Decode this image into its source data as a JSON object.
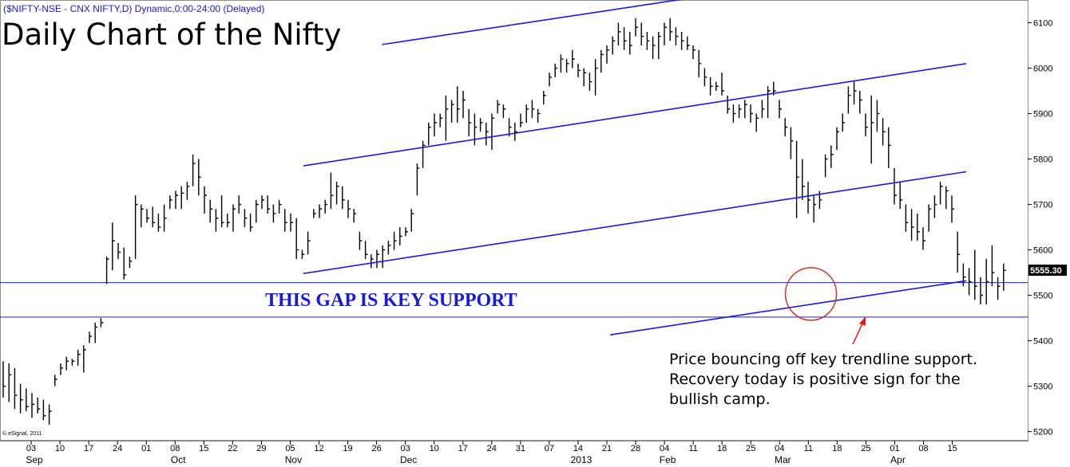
{
  "chart_data": {
    "type": "ohlc",
    "symbol_line": "($NIFTY-NSE - CNX NIFTY,D) Dynamic,0:00-24:00 (Delayed)",
    "title": "Daily Chart of the Nifty",
    "copyright": "© eSignal, 2011",
    "ylim": [
      5180,
      6150
    ],
    "y_ticks": [
      5200,
      5300,
      5400,
      5500,
      5600,
      5700,
      5800,
      5900,
      6000,
      6100
    ],
    "last_price_label": "5555.30",
    "x_day_labels": [
      "03",
      "10",
      "17",
      "24",
      "01",
      "08",
      "15",
      "22",
      "29",
      "05",
      "12",
      "19",
      "26",
      "03",
      "10",
      "17",
      "24",
      "31",
      "07",
      "14",
      "21",
      "28",
      "04",
      "11",
      "18",
      "25",
      "04",
      "11",
      "18",
      "25",
      "01",
      "08",
      "15"
    ],
    "x_month_labels": [
      {
        "text": "Sep",
        "at": "03"
      },
      {
        "text": "Oct",
        "at": "08"
      },
      {
        "text": "Nov",
        "at": "05"
      },
      {
        "text": "Dec",
        "at": "03"
      },
      {
        "text": "2013",
        "at": "14"
      },
      {
        "text": "Feb",
        "at": "04"
      },
      {
        "text": "Mar",
        "at": "04"
      },
      {
        "text": "Apr",
        "at": "01"
      }
    ],
    "annotations": {
      "gap_label": "THIS GAP IS KEY SUPPORT",
      "note": [
        "Price bouncing off key trendline support.",
        "Recovery today is positive sign for the",
        "bullish camp."
      ]
    },
    "gap_levels": [
      5528,
      5452
    ],
    "bar_spacing_days": 1,
    "bars": [
      [
        5355,
        5275,
        5300
      ],
      [
        5350,
        5265,
        5325
      ],
      [
        5340,
        5250,
        5280
      ],
      [
        5305,
        5240,
        5270
      ],
      [
        5295,
        5245,
        5255
      ],
      [
        5285,
        5230,
        5260
      ],
      [
        5275,
        5240,
        5250
      ],
      [
        5270,
        5225,
        5235
      ],
      [
        5260,
        5215,
        5245
      ],
      [
        5325,
        5300,
        5315
      ],
      [
        5350,
        5325,
        5340
      ],
      [
        5365,
        5335,
        5355
      ],
      [
        5360,
        5345,
        5355
      ],
      [
        5380,
        5345,
        5370
      ],
      [
        5390,
        5330,
        5380
      ],
      [
        5420,
        5395,
        5410
      ],
      [
        5440,
        5395,
        5430
      ],
      [
        5450,
        5430,
        5440
      ],
      [
        5585,
        5525,
        5580
      ],
      [
        5660,
        5555,
        5620
      ],
      [
        5615,
        5580,
        5595
      ],
      [
        5605,
        5535,
        5545
      ],
      [
        5585,
        5560,
        5575
      ],
      [
        5720,
        5580,
        5700
      ],
      [
        5700,
        5650,
        5690
      ],
      [
        5690,
        5660,
        5670
      ],
      [
        5695,
        5650,
        5660
      ],
      [
        5680,
        5640,
        5650
      ],
      [
        5700,
        5640,
        5670
      ],
      [
        5720,
        5690,
        5710
      ],
      [
        5730,
        5690,
        5720
      ],
      [
        5740,
        5690,
        5725
      ],
      [
        5750,
        5710,
        5740
      ],
      [
        5810,
        5740,
        5790
      ],
      [
        5800,
        5720,
        5760
      ],
      [
        5740,
        5680,
        5720
      ],
      [
        5710,
        5660,
        5690
      ],
      [
        5690,
        5640,
        5670
      ],
      [
        5720,
        5650,
        5660
      ],
      [
        5680,
        5650,
        5660
      ],
      [
        5700,
        5640,
        5690
      ],
      [
        5720,
        5680,
        5700
      ],
      [
        5690,
        5650,
        5670
      ],
      [
        5680,
        5640,
        5650
      ],
      [
        5710,
        5660,
        5700
      ],
      [
        5720,
        5690,
        5710
      ],
      [
        5720,
        5680,
        5690
      ],
      [
        5700,
        5660,
        5680
      ],
      [
        5710,
        5680,
        5700
      ],
      [
        5690,
        5640,
        5660
      ],
      [
        5680,
        5640,
        5660
      ],
      [
        5670,
        5580,
        5600
      ],
      [
        5600,
        5580,
        5590
      ],
      [
        5640,
        5590,
        5620
      ],
      [
        5690,
        5670,
        5680
      ],
      [
        5700,
        5670,
        5690
      ],
      [
        5710,
        5680,
        5700
      ],
      [
        5770,
        5690,
        5720
      ],
      [
        5750,
        5700,
        5740
      ],
      [
        5740,
        5690,
        5710
      ],
      [
        5710,
        5670,
        5690
      ],
      [
        5690,
        5660,
        5680
      ],
      [
        5640,
        5600,
        5620
      ],
      [
        5620,
        5580,
        5590
      ],
      [
        5590,
        5560,
        5580
      ],
      [
        5600,
        5560,
        5590
      ],
      [
        5610,
        5560,
        5600
      ],
      [
        5620,
        5590,
        5610
      ],
      [
        5640,
        5600,
        5620
      ],
      [
        5650,
        5610,
        5630
      ],
      [
        5650,
        5630,
        5640
      ],
      [
        5690,
        5640,
        5680
      ],
      [
        5790,
        5720,
        5780
      ],
      [
        5840,
        5780,
        5830
      ],
      [
        5880,
        5830,
        5870
      ],
      [
        5900,
        5850,
        5880
      ],
      [
        5900,
        5870,
        5890
      ],
      [
        5940,
        5840,
        5910
      ],
      [
        5930,
        5880,
        5920
      ],
      [
        5960,
        5880,
        5910
      ],
      [
        5950,
        5890,
        5930
      ],
      [
        5910,
        5850,
        5880
      ],
      [
        5900,
        5830,
        5870
      ],
      [
        5890,
        5860,
        5880
      ],
      [
        5880,
        5830,
        5860
      ],
      [
        5900,
        5820,
        5890
      ],
      [
        5930,
        5900,
        5920
      ],
      [
        5920,
        5890,
        5910
      ],
      [
        5890,
        5850,
        5870
      ],
      [
        5880,
        5840,
        5860
      ],
      [
        5900,
        5870,
        5880
      ],
      [
        5920,
        5880,
        5910
      ],
      [
        5930,
        5890,
        5910
      ],
      [
        5910,
        5880,
        5900
      ],
      [
        5950,
        5920,
        5940
      ],
      [
        5990,
        5960,
        5980
      ],
      [
        6010,
        5980,
        6000
      ],
      [
        6030,
        5990,
        6020
      ],
      [
        6020,
        5990,
        6010
      ],
      [
        6040,
        6000,
        6020
      ],
      [
        6010,
        5980,
        5995
      ],
      [
        6000,
        5960,
        5990
      ],
      [
        5990,
        5950,
        5970
      ],
      [
        6020,
        5940,
        6000
      ],
      [
        6040,
        5990,
        6030
      ],
      [
        6050,
        6010,
        6040
      ],
      [
        6070,
        6030,
        6060
      ],
      [
        6100,
        6050,
        6080
      ],
      [
        6090,
        6040,
        6060
      ],
      [
        6080,
        6030,
        6050
      ],
      [
        6110,
        6070,
        6090
      ],
      [
        6100,
        6050,
        6070
      ],
      [
        6080,
        6040,
        6060
      ],
      [
        6070,
        6020,
        6050
      ],
      [
        6080,
        6020,
        6070
      ],
      [
        6100,
        6050,
        6090
      ],
      [
        6110,
        6060,
        6080
      ],
      [
        6090,
        6050,
        6070
      ],
      [
        6080,
        6040,
        6060
      ],
      [
        6070,
        6040,
        6050
      ],
      [
        6050,
        6020,
        6040
      ],
      [
        6040,
        5980,
        6010
      ],
      [
        6000,
        5960,
        5980
      ],
      [
        5980,
        5940,
        5960
      ],
      [
        5970,
        5950,
        5960
      ],
      [
        5990,
        5940,
        5950
      ],
      [
        5940,
        5900,
        5910
      ],
      [
        5920,
        5880,
        5900
      ],
      [
        5920,
        5890,
        5910
      ],
      [
        5930,
        5890,
        5920
      ],
      [
        5920,
        5880,
        5900
      ],
      [
        5900,
        5860,
        5890
      ],
      [
        5930,
        5890,
        5910
      ],
      [
        5960,
        5890,
        5950
      ],
      [
        5970,
        5940,
        5950
      ],
      [
        5930,
        5890,
        5910
      ],
      [
        5890,
        5850,
        5870
      ],
      [
        5870,
        5800,
        5840
      ],
      [
        5840,
        5670,
        5760
      ],
      [
        5800,
        5710,
        5740
      ],
      [
        5750,
        5680,
        5710
      ],
      [
        5720,
        5660,
        5700
      ],
      [
        5730,
        5690,
        5710
      ],
      [
        5810,
        5760,
        5800
      ],
      [
        5830,
        5780,
        5810
      ],
      [
        5870,
        5820,
        5860
      ],
      [
        5900,
        5860,
        5880
      ],
      [
        5960,
        5900,
        5940
      ],
      [
        5970,
        5920,
        5950
      ],
      [
        5950,
        5900,
        5930
      ],
      [
        5900,
        5850,
        5870
      ],
      [
        5940,
        5790,
        5880
      ],
      [
        5930,
        5860,
        5900
      ],
      [
        5890,
        5830,
        5860
      ],
      [
        5870,
        5780,
        5830
      ],
      [
        5780,
        5700,
        5720
      ],
      [
        5750,
        5690,
        5710
      ],
      [
        5700,
        5640,
        5660
      ],
      [
        5690,
        5620,
        5650
      ],
      [
        5680,
        5620,
        5640
      ],
      [
        5650,
        5600,
        5620
      ],
      [
        5700,
        5640,
        5690
      ],
      [
        5720,
        5670,
        5700
      ],
      [
        5750,
        5700,
        5740
      ],
      [
        5740,
        5690,
        5730
      ],
      [
        5720,
        5660,
        5690
      ],
      [
        5640,
        5550,
        5590
      ],
      [
        5570,
        5520,
        5540
      ],
      [
        5560,
        5500,
        5530
      ],
      [
        5600,
        5490,
        5520
      ],
      [
        5540,
        5480,
        5500
      ],
      [
        5580,
        5480,
        5530
      ],
      [
        5610,
        5520,
        5550
      ],
      [
        5540,
        5490,
        5520
      ],
      [
        5570,
        5510,
        5555
      ]
    ],
    "channel_lines": [
      {
        "from": [
          65.9,
          6052
        ],
        "to": [
          119.9,
          6155
        ]
      },
      {
        "from": [
          52.2,
          5785
        ],
        "to": [
          167.5,
          6010
        ]
      },
      {
        "from": [
          52.2,
          5548
        ],
        "to": [
          167.5,
          5772
        ]
      },
      {
        "from": [
          105.6,
          5413
        ],
        "to": [
          167.5,
          5532
        ]
      }
    ],
    "circle_center": [
      140.5,
      5503
    ]
  }
}
